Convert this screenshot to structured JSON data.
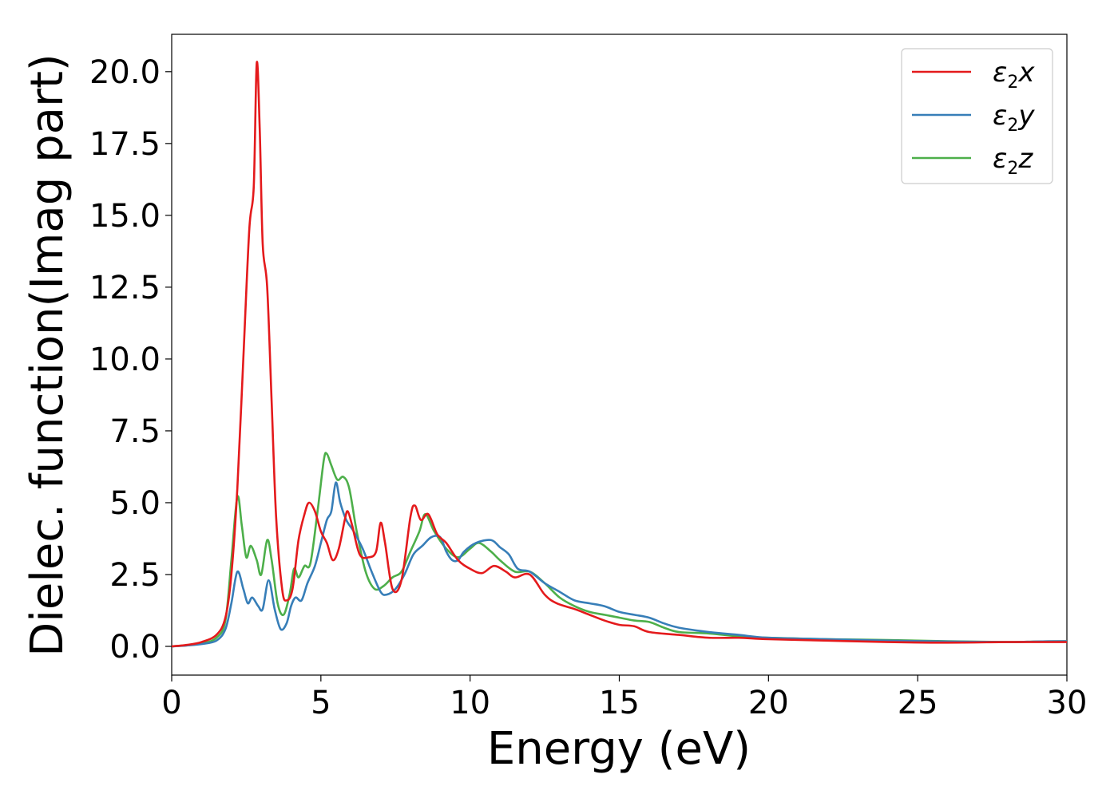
{
  "chart_data": {
    "type": "line",
    "title": "",
    "xlabel": "Energy (eV)",
    "ylabel": "Dielec. function(Imag part)",
    "xlim": [
      0,
      30
    ],
    "ylim": [
      -1.0,
      21.3
    ],
    "xticks": [
      0,
      5,
      10,
      15,
      20,
      25,
      30
    ],
    "xtick_labels": [
      "0",
      "5",
      "10",
      "15",
      "20",
      "25",
      "30"
    ],
    "yticks": [
      0,
      2.5,
      5,
      7.5,
      10,
      12.5,
      15,
      17.5,
      20
    ],
    "ytick_labels": [
      "0.0",
      "2.5",
      "5.0",
      "7.5",
      "10.0",
      "12.5",
      "15.0",
      "17.5",
      "20.0"
    ],
    "grid": false,
    "legend": "top-right",
    "series": [
      {
        "name": "ε2x",
        "base": "ε",
        "sub": "2",
        "comp": "x",
        "color": "#e41a1c",
        "points": [
          [
            0,
            0
          ],
          [
            0.5,
            0.05
          ],
          [
            1,
            0.15
          ],
          [
            1.5,
            0.4
          ],
          [
            1.8,
            1.0
          ],
          [
            2.0,
            2.5
          ],
          [
            2.2,
            5.5
          ],
          [
            2.4,
            10.0
          ],
          [
            2.6,
            14.5
          ],
          [
            2.75,
            16.0
          ],
          [
            2.85,
            20.3
          ],
          [
            2.95,
            18.0
          ],
          [
            3.05,
            14.0
          ],
          [
            3.2,
            12.5
          ],
          [
            3.35,
            8.5
          ],
          [
            3.5,
            4.5
          ],
          [
            3.7,
            2.0
          ],
          [
            3.85,
            1.6
          ],
          [
            4.05,
            2.0
          ],
          [
            4.25,
            3.7
          ],
          [
            4.45,
            4.6
          ],
          [
            4.6,
            5.0
          ],
          [
            4.8,
            4.7
          ],
          [
            5.0,
            4.0
          ],
          [
            5.2,
            3.6
          ],
          [
            5.4,
            3.0
          ],
          [
            5.6,
            3.4
          ],
          [
            5.8,
            4.4
          ],
          [
            5.9,
            4.7
          ],
          [
            6.05,
            4.2
          ],
          [
            6.3,
            3.2
          ],
          [
            6.6,
            3.1
          ],
          [
            6.85,
            3.3
          ],
          [
            7.0,
            4.3
          ],
          [
            7.15,
            3.6
          ],
          [
            7.4,
            2.0
          ],
          [
            7.7,
            2.3
          ],
          [
            8.0,
            4.5
          ],
          [
            8.15,
            4.9
          ],
          [
            8.35,
            4.4
          ],
          [
            8.6,
            4.6
          ],
          [
            8.9,
            3.9
          ],
          [
            9.2,
            3.6
          ],
          [
            9.6,
            3.0
          ],
          [
            10.0,
            2.7
          ],
          [
            10.4,
            2.55
          ],
          [
            10.8,
            2.8
          ],
          [
            11.2,
            2.6
          ],
          [
            11.5,
            2.4
          ],
          [
            12.0,
            2.5
          ],
          [
            12.5,
            1.8
          ],
          [
            12.9,
            1.5
          ],
          [
            13.5,
            1.3
          ],
          [
            14.0,
            1.1
          ],
          [
            14.5,
            0.9
          ],
          [
            15.0,
            0.75
          ],
          [
            15.5,
            0.7
          ],
          [
            16.0,
            0.5
          ],
          [
            17.0,
            0.4
          ],
          [
            18.0,
            0.3
          ],
          [
            19.0,
            0.3
          ],
          [
            20.0,
            0.25
          ],
          [
            22.0,
            0.2
          ],
          [
            24.0,
            0.15
          ],
          [
            26.0,
            0.13
          ],
          [
            28.0,
            0.15
          ],
          [
            29.0,
            0.15
          ],
          [
            30.0,
            0.15
          ]
        ]
      },
      {
        "name": "ε2y",
        "base": "ε",
        "sub": "2",
        "comp": "y",
        "color": "#377eb8",
        "points": [
          [
            0,
            0
          ],
          [
            0.5,
            0.03
          ],
          [
            1,
            0.08
          ],
          [
            1.5,
            0.2
          ],
          [
            1.8,
            0.6
          ],
          [
            2.0,
            1.5
          ],
          [
            2.2,
            2.6
          ],
          [
            2.4,
            2.0
          ],
          [
            2.55,
            1.5
          ],
          [
            2.7,
            1.7
          ],
          [
            2.9,
            1.4
          ],
          [
            3.05,
            1.3
          ],
          [
            3.25,
            2.3
          ],
          [
            3.45,
            1.3
          ],
          [
            3.65,
            0.6
          ],
          [
            3.85,
            0.8
          ],
          [
            4.0,
            1.4
          ],
          [
            4.15,
            1.7
          ],
          [
            4.35,
            1.6
          ],
          [
            4.55,
            2.2
          ],
          [
            4.8,
            2.8
          ],
          [
            5.0,
            3.6
          ],
          [
            5.2,
            4.4
          ],
          [
            5.35,
            4.7
          ],
          [
            5.5,
            5.7
          ],
          [
            5.65,
            5.0
          ],
          [
            5.85,
            4.4
          ],
          [
            6.1,
            4.0
          ],
          [
            6.4,
            3.4
          ],
          [
            6.7,
            2.6
          ],
          [
            7.0,
            1.9
          ],
          [
            7.2,
            1.8
          ],
          [
            7.5,
            2.0
          ],
          [
            7.8,
            2.5
          ],
          [
            8.1,
            3.2
          ],
          [
            8.4,
            3.5
          ],
          [
            8.7,
            3.8
          ],
          [
            9.0,
            3.8
          ],
          [
            9.2,
            3.3
          ],
          [
            9.4,
            3.0
          ],
          [
            9.6,
            3.0
          ],
          [
            9.8,
            3.3
          ],
          [
            10.2,
            3.6
          ],
          [
            10.7,
            3.7
          ],
          [
            11.0,
            3.45
          ],
          [
            11.3,
            3.2
          ],
          [
            11.6,
            2.7
          ],
          [
            12.0,
            2.6
          ],
          [
            12.5,
            2.2
          ],
          [
            13.0,
            1.9
          ],
          [
            13.5,
            1.6
          ],
          [
            14.0,
            1.5
          ],
          [
            14.5,
            1.4
          ],
          [
            15.0,
            1.2
          ],
          [
            15.5,
            1.1
          ],
          [
            16.0,
            1.0
          ],
          [
            16.5,
            0.8
          ],
          [
            17.0,
            0.65
          ],
          [
            18.0,
            0.5
          ],
          [
            19.0,
            0.4
          ],
          [
            20.0,
            0.3
          ],
          [
            22.0,
            0.25
          ],
          [
            24.0,
            0.2
          ],
          [
            26.0,
            0.17
          ],
          [
            28.0,
            0.15
          ],
          [
            29.0,
            0.17
          ],
          [
            30.0,
            0.18
          ]
        ]
      },
      {
        "name": "ε2z",
        "base": "ε",
        "sub": "2",
        "comp": "z",
        "color": "#4daf4a",
        "points": [
          [
            0,
            0
          ],
          [
            0.5,
            0.04
          ],
          [
            1,
            0.1
          ],
          [
            1.5,
            0.3
          ],
          [
            1.8,
            0.9
          ],
          [
            2.0,
            3.0
          ],
          [
            2.2,
            5.2
          ],
          [
            2.35,
            4.2
          ],
          [
            2.5,
            3.1
          ],
          [
            2.65,
            3.5
          ],
          [
            2.85,
            3.0
          ],
          [
            3.0,
            2.5
          ],
          [
            3.2,
            3.7
          ],
          [
            3.35,
            3.0
          ],
          [
            3.55,
            1.5
          ],
          [
            3.75,
            1.1
          ],
          [
            3.95,
            1.8
          ],
          [
            4.1,
            2.7
          ],
          [
            4.25,
            2.4
          ],
          [
            4.45,
            2.8
          ],
          [
            4.65,
            2.9
          ],
          [
            4.9,
            4.8
          ],
          [
            5.1,
            6.5
          ],
          [
            5.2,
            6.7
          ],
          [
            5.35,
            6.3
          ],
          [
            5.55,
            5.8
          ],
          [
            5.75,
            5.9
          ],
          [
            5.95,
            5.5
          ],
          [
            6.2,
            4.0
          ],
          [
            6.5,
            2.6
          ],
          [
            6.8,
            2.0
          ],
          [
            7.1,
            2.1
          ],
          [
            7.4,
            2.4
          ],
          [
            7.7,
            2.6
          ],
          [
            8.0,
            3.3
          ],
          [
            8.3,
            4.0
          ],
          [
            8.5,
            4.6
          ],
          [
            8.8,
            4.0
          ],
          [
            9.2,
            3.4
          ],
          [
            9.6,
            3.1
          ],
          [
            10.0,
            3.4
          ],
          [
            10.3,
            3.6
          ],
          [
            10.7,
            3.3
          ],
          [
            11.0,
            3.0
          ],
          [
            11.5,
            2.6
          ],
          [
            12.0,
            2.6
          ],
          [
            12.5,
            2.2
          ],
          [
            13.0,
            1.7
          ],
          [
            13.5,
            1.4
          ],
          [
            14.0,
            1.2
          ],
          [
            14.5,
            1.1
          ],
          [
            15.0,
            1.0
          ],
          [
            15.5,
            0.9
          ],
          [
            16.0,
            0.85
          ],
          [
            16.5,
            0.65
          ],
          [
            17.0,
            0.5
          ],
          [
            18.0,
            0.45
          ],
          [
            19.0,
            0.35
          ],
          [
            20.0,
            0.3
          ],
          [
            22.0,
            0.25
          ],
          [
            24.0,
            0.22
          ],
          [
            26.0,
            0.18
          ],
          [
            28.0,
            0.15
          ],
          [
            29.0,
            0.17
          ],
          [
            30.0,
            0.18
          ]
        ]
      }
    ]
  }
}
